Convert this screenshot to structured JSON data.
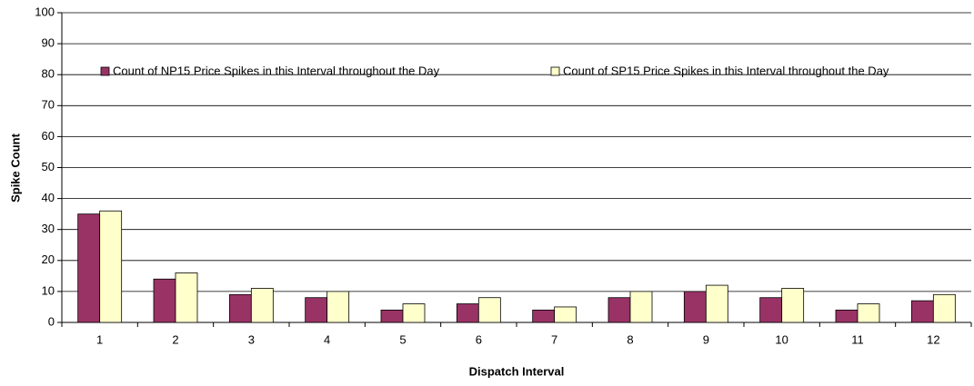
{
  "chart_data": {
    "type": "bar",
    "x_label": "Dispatch Interval",
    "y_label": "Spike Count",
    "categories": [
      "1",
      "2",
      "3",
      "4",
      "5",
      "6",
      "7",
      "8",
      "9",
      "10",
      "11",
      "12"
    ],
    "series": [
      {
        "name": "Count of NP15 Price Spikes in this Interval throughout the Day",
        "color": "#993366",
        "values": [
          35,
          14,
          9,
          8,
          4,
          6,
          4,
          8,
          10,
          8,
          4,
          7
        ]
      },
      {
        "name": "Count of SP15 Price Spikes in this Interval throughout the Day",
        "color": "#ffffcc",
        "values": [
          36,
          16,
          11,
          10,
          6,
          8,
          5,
          10,
          12,
          11,
          6,
          9
        ]
      }
    ],
    "ylim": [
      0,
      100
    ],
    "yticks": [
      0,
      10,
      20,
      30,
      40,
      50,
      60,
      70,
      80,
      90,
      100
    ],
    "grid": true,
    "legend": "top"
  }
}
